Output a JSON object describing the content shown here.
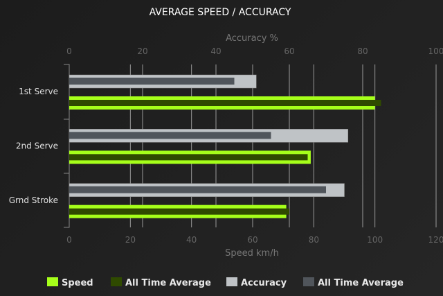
{
  "chart_data": {
    "type": "bar",
    "orientation": "horizontal",
    "title": "AVERAGE SPEED / ACCURACY",
    "categories": [
      "1st Serve",
      "2nd Serve",
      "Grnd Stroke"
    ],
    "x_axis_bottom": {
      "label": "Speed km/h",
      "range": [
        0,
        120
      ],
      "ticks": [
        0,
        20,
        40,
        60,
        80,
        100,
        120
      ]
    },
    "x_axis_top": {
      "label": "Accuracy %",
      "range": [
        0,
        100
      ],
      "ticks": [
        0,
        20,
        40,
        60,
        80,
        100
      ]
    },
    "grid": true,
    "legend_position": "bottom",
    "series": [
      {
        "name": "Speed",
        "axis": "speed",
        "color": "#a6ff1a",
        "values": [
          100,
          79,
          71
        ]
      },
      {
        "name": "All Time Average",
        "axis": "speed",
        "color": "#2f4a00",
        "values": [
          102,
          78,
          72
        ]
      },
      {
        "name": "Accuracy",
        "axis": "accuracy",
        "color": "#bfc3c6",
        "values": [
          51,
          76,
          75
        ]
      },
      {
        "name": "All Time Average",
        "axis": "accuracy",
        "color": "#50555b",
        "values": [
          45,
          55,
          70
        ]
      }
    ]
  }
}
